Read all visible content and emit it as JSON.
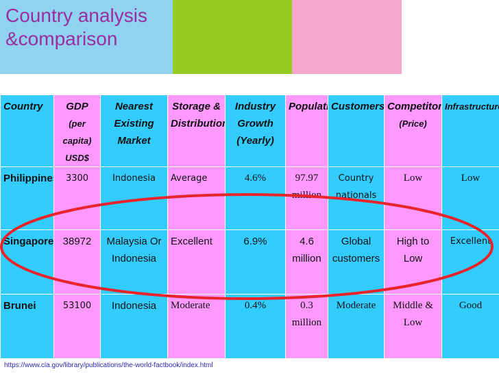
{
  "title": {
    "line1": "Country analysis",
    "line2": "&comparison"
  },
  "table": {
    "headers": [
      "Country",
      "GDP",
      "(per capita) USD$",
      "Nearest Existing Market",
      "Storage & Distribution",
      "Industry Growth (Yearly)",
      "Population",
      "Customers",
      "Competitors",
      "(Price)",
      "Infrastructure"
    ],
    "rows": [
      [
        "Philippines",
        "3300",
        "Indonesia",
        "Average",
        "4.6%",
        "97.97 million",
        "Country nationals",
        "Low",
        "Low"
      ],
      [
        "Singapore",
        "38972",
        "Malaysia Or Indonesia",
        "Excellent",
        "6.9%",
        "4.6 million",
        "Global customers",
        "High to Low",
        "Excellent"
      ],
      [
        "Brunei",
        "53100",
        "Indonesia",
        "Moderate",
        "0.4%",
        "0.3 million",
        "Moderate",
        "Middle & Low",
        "Good"
      ]
    ]
  },
  "source_link": "https://www.cia.gov/library/publications/the-world-factbook/index.html",
  "colors": {
    "title": "#9b2da0",
    "cell_blue": "#33ccff",
    "cell_pink": "#ff99ff",
    "ellipse": "#e8232a"
  }
}
